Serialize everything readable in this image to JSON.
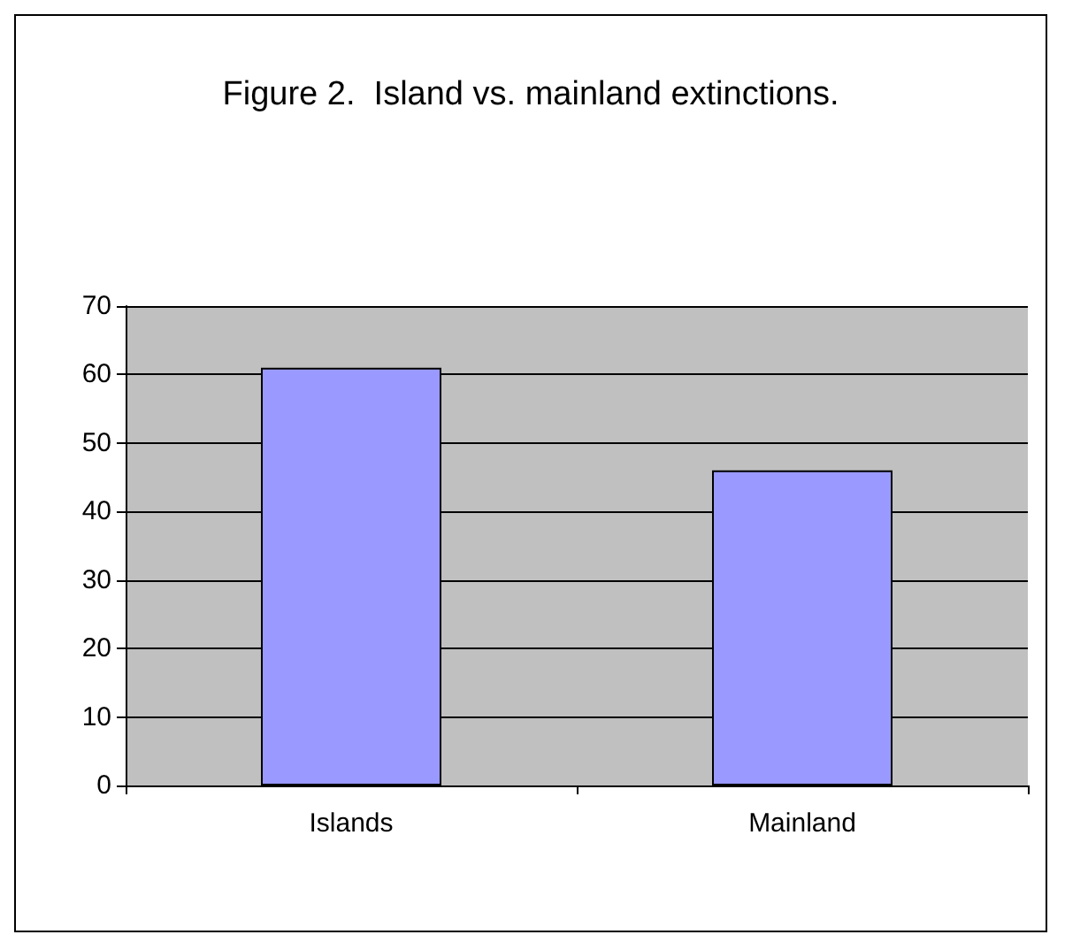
{
  "chart_data": {
    "type": "bar",
    "title": "Figure 2.  Island vs. mainland extinctions.",
    "categories": [
      "Islands",
      "Mainland"
    ],
    "values": [
      61,
      46
    ],
    "color": "#9999ff",
    "ylim": [
      0,
      70
    ],
    "yticks": [
      0,
      10,
      20,
      30,
      40,
      50,
      60,
      70
    ],
    "grid": "y"
  }
}
